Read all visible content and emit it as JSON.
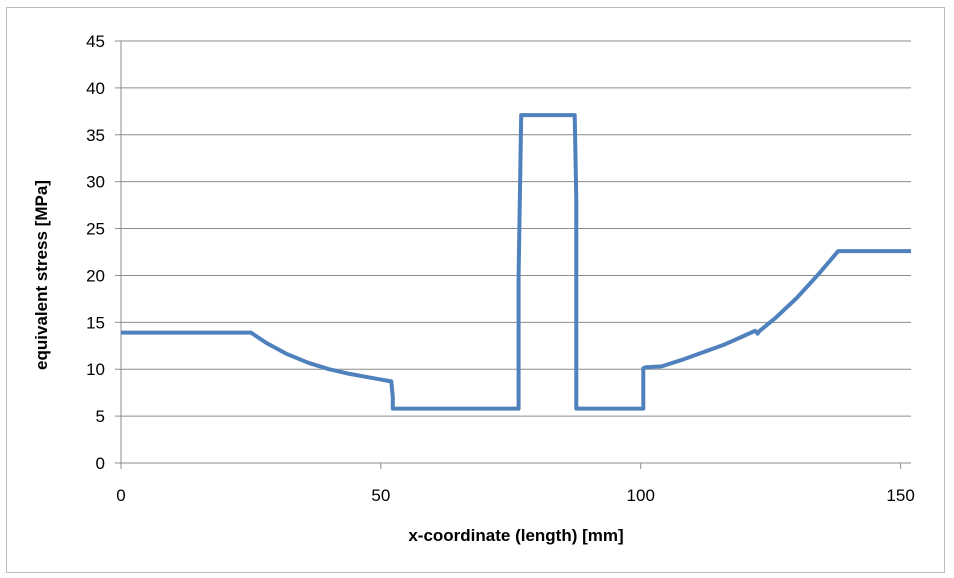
{
  "chart_data": {
    "type": "line",
    "title": "",
    "xlabel": "x-coordinate (length) [mm]",
    "ylabel": "equivalent stress [MPa]",
    "xlim": [
      0,
      152
    ],
    "ylim": [
      0,
      45
    ],
    "xticks": [
      0,
      50,
      100,
      150
    ],
    "yticks": [
      0,
      5,
      10,
      15,
      20,
      25,
      30,
      35,
      40,
      45
    ],
    "grid": "horizontal",
    "legend": "none",
    "series": [
      {
        "color": "#4f81bd",
        "x": [
          0,
          25,
          28,
          32,
          36,
          40,
          44,
          48,
          52,
          52.3,
          52.3,
          76.5,
          76.5,
          77,
          87.3,
          87.6,
          87.6,
          100.5,
          100.5,
          101,
          104,
          108,
          112,
          116,
          120,
          122,
          122.5,
          122.7,
          126,
          130,
          134,
          138,
          152
        ],
        "y": [
          13.9,
          13.9,
          12.8,
          11.6,
          10.7,
          10.0,
          9.5,
          9.1,
          8.7,
          7.0,
          5.8,
          5.8,
          20.0,
          37.1,
          37.1,
          28.0,
          5.8,
          5.8,
          10.1,
          10.2,
          10.3,
          11.0,
          11.8,
          12.6,
          13.6,
          14.1,
          13.8,
          14.0,
          15.5,
          17.6,
          20.0,
          22.6,
          22.6
        ]
      }
    ]
  }
}
